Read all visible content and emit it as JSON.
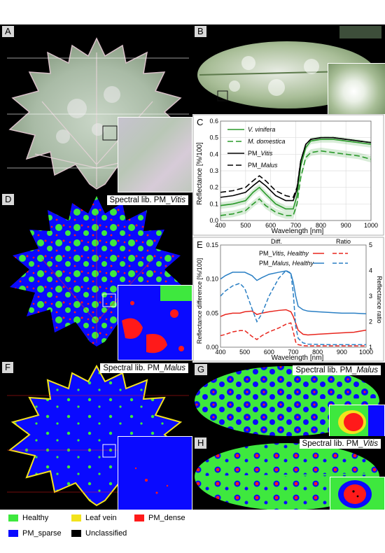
{
  "panels": {
    "A": {
      "label": "A"
    },
    "B": {
      "label": "B"
    },
    "C": {
      "label": "C"
    },
    "D": {
      "label": "D",
      "lib_prefix": "Spectral lib. PM_",
      "lib_name": "Vitis"
    },
    "E": {
      "label": "E"
    },
    "F": {
      "label": "F",
      "lib_prefix": "Spectral lib. PM_",
      "lib_name": "Malus"
    },
    "G": {
      "label": "G",
      "lib_prefix": "Spectral lib. PM_",
      "lib_name": "Malus"
    },
    "H": {
      "label": "H",
      "lib_prefix": "Spectral lib. PM_",
      "lib_name": "Vitis"
    }
  },
  "class_colors": {
    "healthy": "#3ee83e",
    "leaf_vein": "#f2e21c",
    "pm_dense": "#ff1a1a",
    "pm_sparse": "#0a0aff",
    "unclassified": "#000000"
  },
  "legend": [
    {
      "label": "Healthy",
      "color": "#3ee83e"
    },
    {
      "label": "Leaf vein",
      "color": "#f2e21c"
    },
    {
      "label": "PM_dense",
      "color": "#ff1a1a"
    },
    {
      "label": "PM_sparse",
      "color": "#0a0aff"
    },
    {
      "label": "Unclassified",
      "color": "#000000"
    }
  ],
  "chart_data": [
    {
      "type": "line",
      "panel": "C",
      "xlabel": "Wavelength [nm]",
      "ylabel": "Reflectance [%/100]",
      "xlim": [
        400,
        1000
      ],
      "ylim": [
        0,
        0.6
      ],
      "xticks": [
        "400",
        "500",
        "600",
        "700",
        "800",
        "900",
        "1000"
      ],
      "yticks": [
        "0.0",
        "0.1",
        "0.2",
        "0.3",
        "0.4",
        "0.5",
        "0.6"
      ],
      "grid": true,
      "legend_position": "top-left",
      "x": [
        400,
        450,
        500,
        530,
        555,
        580,
        620,
        660,
        690,
        705,
        720,
        740,
        760,
        800,
        850,
        900,
        950,
        1000
      ],
      "series": [
        {
          "name": "V. vinifera",
          "name_italic": true,
          "color": "#2a9a2a",
          "dash": "solid",
          "band": 0.02,
          "values": [
            0.09,
            0.1,
            0.12,
            0.17,
            0.2,
            0.16,
            0.1,
            0.07,
            0.07,
            0.15,
            0.33,
            0.44,
            0.48,
            0.49,
            0.49,
            0.48,
            0.47,
            0.46
          ]
        },
        {
          "name": "M. domestica",
          "name_italic": true,
          "color": "#2a9a2a",
          "dash": "8,4",
          "band": 0.02,
          "values": [
            0.03,
            0.04,
            0.06,
            0.1,
            0.13,
            0.09,
            0.05,
            0.03,
            0.03,
            0.1,
            0.26,
            0.38,
            0.41,
            0.42,
            0.41,
            0.4,
            0.39,
            0.37
          ]
        },
        {
          "name": "PM_Vitis",
          "name_prefix": "PM_",
          "name_rest": "Vitis",
          "color": "#000000",
          "dash": "solid",
          "band": 0,
          "values": [
            0.14,
            0.15,
            0.17,
            0.21,
            0.24,
            0.21,
            0.15,
            0.12,
            0.12,
            0.19,
            0.36,
            0.46,
            0.49,
            0.5,
            0.5,
            0.49,
            0.48,
            0.47
          ]
        },
        {
          "name": "PM_Malus",
          "name_prefix": "PM_",
          "name_rest": "Malus",
          "color": "#000000",
          "dash": "8,4",
          "band": 0,
          "values": [
            0.17,
            0.18,
            0.2,
            0.24,
            0.27,
            0.24,
            0.18,
            0.15,
            0.14,
            0.2,
            0.36,
            0.46,
            0.49,
            0.5,
            0.5,
            0.49,
            0.48,
            0.47
          ]
        }
      ]
    },
    {
      "type": "line",
      "panel": "E",
      "xlabel": "Wavelength [nm]",
      "ylabel": "Reflectance difference [%/100]",
      "y2label": "Reflectance ratio",
      "xlim": [
        400,
        1000
      ],
      "ylim": [
        0,
        0.15
      ],
      "y2lim": [
        1,
        5
      ],
      "xticks": [
        "400",
        "500",
        "600",
        "700",
        "800",
        "900",
        "1000"
      ],
      "yticks": [
        "0.00",
        "0.05",
        "0.10",
        "0.15"
      ],
      "y2ticks": [
        "1",
        "2",
        "3",
        "4",
        "5"
      ],
      "legend_headers": [
        "Diff.",
        "Ratio"
      ],
      "x": [
        400,
        420,
        450,
        480,
        500,
        530,
        550,
        570,
        600,
        640,
        670,
        690,
        700,
        710,
        720,
        740,
        760,
        800,
        850,
        900,
        950,
        1000
      ],
      "series": [
        {
          "name": "PM_Vitis, Healthy",
          "name_prefix": "PM_",
          "name_rest": "Vitis, Healthy",
          "kind": "diff",
          "color": "#e8261e",
          "dash": "solid",
          "values": [
            0.045,
            0.048,
            0.05,
            0.05,
            0.052,
            0.053,
            0.048,
            0.05,
            0.052,
            0.054,
            0.055,
            0.052,
            0.045,
            0.035,
            0.025,
            0.019,
            0.018,
            0.019,
            0.02,
            0.021,
            0.022,
            0.025
          ]
        },
        {
          "name": "PM_Malus, Healthy",
          "name_prefix": "PM_",
          "name_rest": "Malus, Healthy",
          "kind": "diff",
          "color": "#2a7fc4",
          "dash": "solid",
          "values": [
            0.1,
            0.105,
            0.11,
            0.11,
            0.11,
            0.105,
            0.098,
            0.102,
            0.107,
            0.11,
            0.112,
            0.108,
            0.095,
            0.075,
            0.06,
            0.055,
            0.053,
            0.052,
            0.051,
            0.05,
            0.05,
            0.049
          ]
        },
        {
          "name": "PM_Vitis, Healthy",
          "kind": "ratio",
          "color": "#e8261e",
          "dash": "6,3",
          "values": [
            1.45,
            1.5,
            1.6,
            1.65,
            1.65,
            1.42,
            1.3,
            1.45,
            1.6,
            1.75,
            1.9,
            1.95,
            1.6,
            1.2,
            1.1,
            1.06,
            1.05,
            1.05,
            1.05,
            1.05,
            1.05,
            1.05
          ]
        },
        {
          "name": "PM_Malus, Healthy",
          "kind": "ratio",
          "color": "#2a7fc4",
          "dash": "6,3",
          "values": [
            3.0,
            3.2,
            3.4,
            3.5,
            3.3,
            2.5,
            2.0,
            2.3,
            3.0,
            3.7,
            4.0,
            3.9,
            3.1,
            1.8,
            1.35,
            1.17,
            1.12,
            1.11,
            1.1,
            1.1,
            1.1,
            1.1
          ]
        }
      ]
    }
  ]
}
